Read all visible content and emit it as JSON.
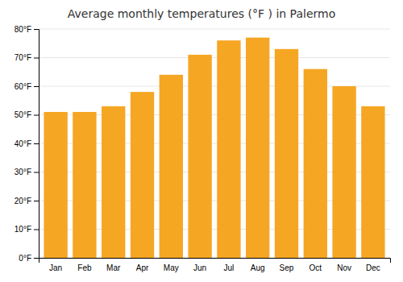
{
  "chart_data": {
    "type": "bar",
    "title": "Average monthly temperatures (°F ) in Palermo",
    "categories": [
      "Jan",
      "Feb",
      "Mar",
      "Apr",
      "May",
      "Jun",
      "Jul",
      "Aug",
      "Sep",
      "Oct",
      "Nov",
      "Dec"
    ],
    "values": [
      51,
      51,
      53,
      58,
      64,
      71,
      76,
      77,
      73,
      66,
      60,
      53
    ],
    "color": "#F5A623",
    "ylim": [
      0,
      80
    ],
    "yticks": [
      {
        "value": 0,
        "label": "0°F"
      },
      {
        "value": 10,
        "label": "10°F"
      },
      {
        "value": 20,
        "label": "20°F"
      },
      {
        "value": 30,
        "label": "30°F"
      },
      {
        "value": 40,
        "label": "40°F"
      },
      {
        "value": 50,
        "label": "50°F"
      },
      {
        "value": 60,
        "label": "60°F"
      },
      {
        "value": 70,
        "label": "70°F"
      },
      {
        "value": 80,
        "label": "80°F"
      }
    ],
    "grid": true
  }
}
